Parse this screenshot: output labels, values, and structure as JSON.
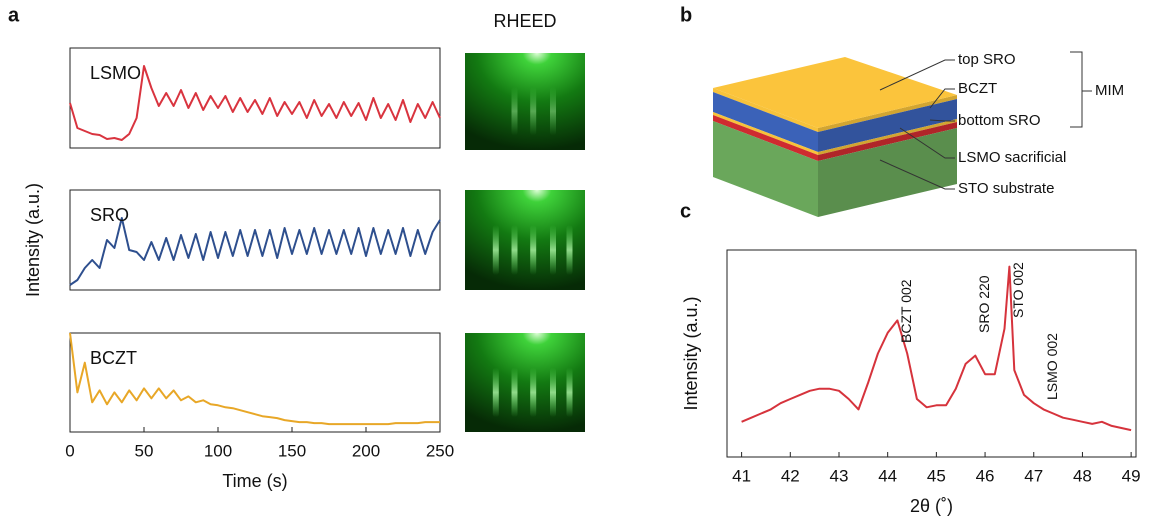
{
  "panel_a": {
    "label": "a",
    "ylabel": "Intensity (a.u.)",
    "image_title": "RHEED"
  },
  "panel_b": {
    "label": "b",
    "layers": [
      "top SRO",
      "BCZT",
      "bottom SRO",
      "LSMO sacrificial",
      "STO substrate"
    ],
    "group": "MIM"
  },
  "panel_c": {
    "label": "c"
  },
  "chart_data": [
    {
      "type": "line",
      "title": "LSMO",
      "color": "#d9343f",
      "xlim": [
        0,
        250
      ],
      "ylim": [
        0,
        1
      ],
      "x": [
        0,
        5,
        10,
        15,
        20,
        25,
        30,
        35,
        40,
        45,
        50,
        55,
        60,
        65,
        70,
        75,
        80,
        85,
        90,
        95,
        100,
        105,
        110,
        115,
        120,
        125,
        130,
        135,
        140,
        145,
        150,
        155,
        160,
        165,
        170,
        175,
        180,
        185,
        190,
        195,
        200,
        205,
        210,
        215,
        220,
        225,
        230,
        235,
        240,
        245,
        250
      ],
      "values": [
        0.45,
        0.2,
        0.17,
        0.14,
        0.13,
        0.09,
        0.1,
        0.08,
        0.14,
        0.3,
        0.82,
        0.6,
        0.42,
        0.55,
        0.42,
        0.58,
        0.4,
        0.55,
        0.38,
        0.52,
        0.4,
        0.52,
        0.36,
        0.5,
        0.36,
        0.48,
        0.34,
        0.5,
        0.32,
        0.46,
        0.34,
        0.46,
        0.3,
        0.48,
        0.32,
        0.44,
        0.3,
        0.46,
        0.32,
        0.45,
        0.28,
        0.5,
        0.3,
        0.44,
        0.28,
        0.48,
        0.26,
        0.44,
        0.3,
        0.46,
        0.3
      ]
    },
    {
      "type": "line",
      "title": "SRO",
      "color": "#2e4f8e",
      "xlim": [
        0,
        250
      ],
      "ylim": [
        0,
        1
      ],
      "x": [
        0,
        5,
        10,
        15,
        20,
        25,
        30,
        35,
        40,
        45,
        50,
        55,
        60,
        65,
        70,
        75,
        80,
        85,
        90,
        95,
        100,
        105,
        110,
        115,
        120,
        125,
        130,
        135,
        140,
        145,
        150,
        155,
        160,
        165,
        170,
        175,
        180,
        185,
        190,
        195,
        200,
        205,
        210,
        215,
        220,
        225,
        230,
        235,
        240,
        245,
        250
      ],
      "values": [
        0.05,
        0.1,
        0.22,
        0.3,
        0.22,
        0.5,
        0.42,
        0.72,
        0.4,
        0.38,
        0.3,
        0.48,
        0.3,
        0.52,
        0.3,
        0.55,
        0.32,
        0.56,
        0.3,
        0.58,
        0.32,
        0.58,
        0.34,
        0.6,
        0.34,
        0.6,
        0.34,
        0.6,
        0.32,
        0.62,
        0.36,
        0.6,
        0.36,
        0.62,
        0.36,
        0.6,
        0.36,
        0.6,
        0.36,
        0.62,
        0.34,
        0.62,
        0.36,
        0.6,
        0.36,
        0.62,
        0.34,
        0.6,
        0.36,
        0.58,
        0.7
      ]
    },
    {
      "type": "line",
      "title": "BCZT",
      "color": "#e8a727",
      "xlim": [
        0,
        250
      ],
      "ylim": [
        0,
        1
      ],
      "xticks": [
        0,
        50,
        100,
        150,
        200,
        250
      ],
      "xlabel": "Time (s)",
      "x": [
        0,
        5,
        10,
        15,
        20,
        25,
        30,
        35,
        40,
        45,
        50,
        55,
        60,
        65,
        70,
        75,
        80,
        85,
        90,
        95,
        100,
        105,
        110,
        115,
        120,
        125,
        130,
        135,
        140,
        145,
        150,
        155,
        160,
        165,
        170,
        175,
        180,
        185,
        190,
        195,
        200,
        205,
        210,
        215,
        220,
        225,
        230,
        235,
        240,
        245,
        250
      ],
      "values": [
        1.0,
        0.4,
        0.7,
        0.3,
        0.42,
        0.28,
        0.4,
        0.3,
        0.42,
        0.32,
        0.44,
        0.34,
        0.44,
        0.34,
        0.42,
        0.32,
        0.36,
        0.3,
        0.32,
        0.28,
        0.27,
        0.25,
        0.24,
        0.22,
        0.2,
        0.18,
        0.16,
        0.15,
        0.14,
        0.12,
        0.11,
        0.1,
        0.1,
        0.09,
        0.09,
        0.08,
        0.08,
        0.08,
        0.08,
        0.08,
        0.08,
        0.08,
        0.08,
        0.08,
        0.09,
        0.09,
        0.09,
        0.09,
        0.1,
        0.1,
        0.1
      ]
    },
    {
      "type": "line",
      "color": "#d6333c",
      "xlim": [
        40.7,
        49.1
      ],
      "ylim": [
        0,
        1
      ],
      "xticks": [
        41,
        42,
        43,
        44,
        45,
        46,
        47,
        48,
        49
      ],
      "xlabel": "2θ (˚)",
      "ylabel": "Intensity (a.u.)",
      "x": [
        41,
        41.2,
        41.4,
        41.6,
        41.8,
        42,
        42.2,
        42.4,
        42.6,
        42.8,
        43,
        43.2,
        43.4,
        43.6,
        43.8,
        44,
        44.2,
        44.4,
        44.6,
        44.8,
        45,
        45.2,
        45.4,
        45.6,
        45.8,
        46,
        46.2,
        46.4,
        46.5,
        46.6,
        46.8,
        47,
        47.2,
        47.4,
        47.6,
        47.8,
        48,
        48.2,
        48.4,
        48.6,
        48.8,
        49
      ],
      "values": [
        0.17,
        0.19,
        0.21,
        0.23,
        0.26,
        0.28,
        0.3,
        0.32,
        0.33,
        0.33,
        0.32,
        0.28,
        0.23,
        0.36,
        0.5,
        0.6,
        0.66,
        0.5,
        0.28,
        0.24,
        0.25,
        0.25,
        0.33,
        0.45,
        0.49,
        0.4,
        0.4,
        0.62,
        0.92,
        0.42,
        0.3,
        0.26,
        0.23,
        0.21,
        0.19,
        0.18,
        0.17,
        0.16,
        0.17,
        0.15,
        0.14,
        0.13
      ],
      "annotations": [
        {
          "text": "BCZT 002",
          "x": 44.2
        },
        {
          "text": "SRO 220",
          "x": 45.8
        },
        {
          "text": "STO 002",
          "x": 46.5
        },
        {
          "text": "LSMO 002",
          "x": 47.2
        }
      ]
    }
  ]
}
